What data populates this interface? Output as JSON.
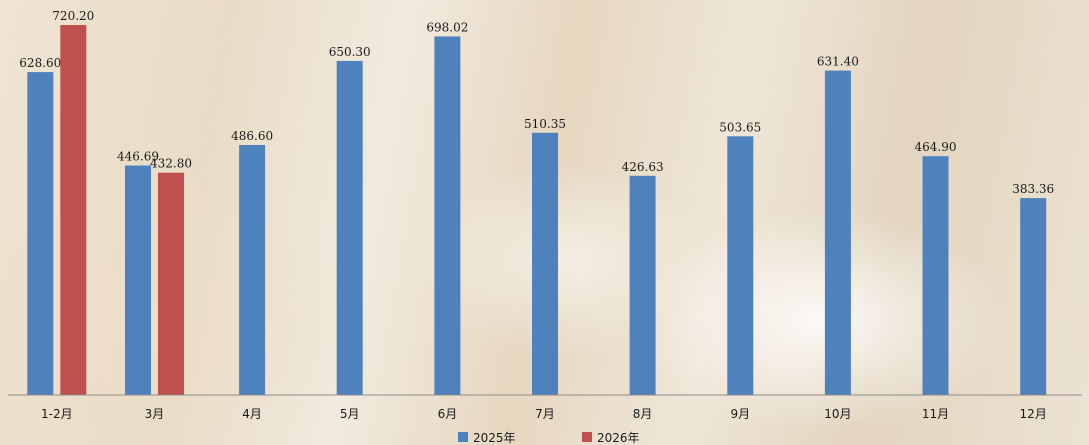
{
  "chart_data": {
    "type": "bar",
    "categories": [
      "1-2月",
      "3月",
      "4月",
      "5月",
      "6月",
      "7月",
      "8月",
      "9月",
      "10月",
      "11月",
      "12月"
    ],
    "series": [
      {
        "name": "2025年",
        "color": "#4f81bd",
        "values": [
          628.6,
          446.69,
          486.6,
          650.3,
          698.02,
          510.35,
          426.63,
          503.65,
          631.4,
          464.9,
          383.36
        ],
        "labels": [
          "628.60",
          "446.69",
          "486.60",
          "650.30",
          "698.02",
          "510.35",
          "426.63",
          "503.65",
          "631.40",
          "464.90",
          "383.36"
        ]
      },
      {
        "name": "2026年",
        "color": "#c0504d",
        "values": [
          720.2,
          432.8,
          null,
          null,
          null,
          null,
          null,
          null,
          null,
          null,
          null
        ],
        "labels": [
          "720.20",
          "432.80",
          null,
          null,
          null,
          null,
          null,
          null,
          null,
          null,
          null
        ]
      }
    ],
    "ylim": [
      0,
      720.2
    ],
    "grid": false,
    "legend": "bottom-center"
  }
}
